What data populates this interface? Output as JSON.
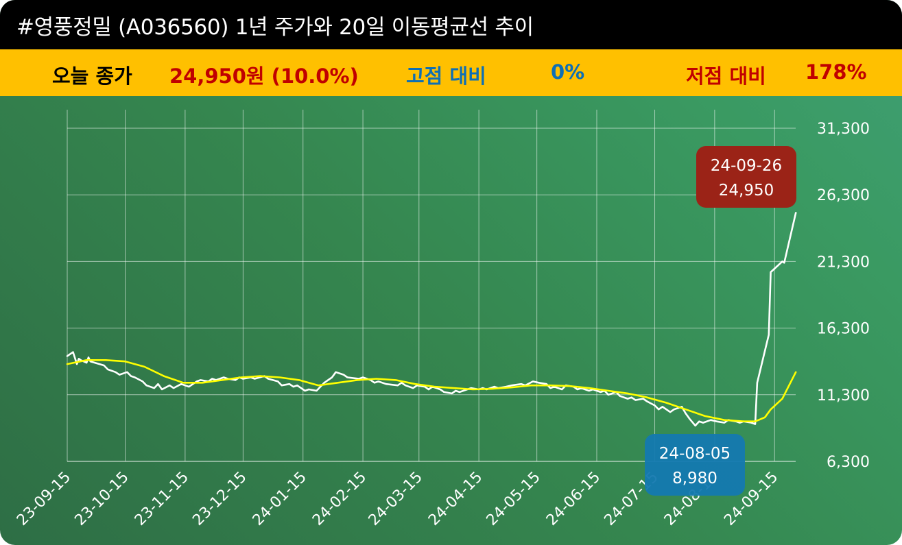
{
  "header": {
    "title": "#영풍정밀 (A036560) 1년 주가와 20일 이동평균선 추이"
  },
  "info": {
    "close_label": "오늘 종가",
    "close_value": "24,950원 (10.0%)",
    "high_label": "고점 대비",
    "high_value": "0%",
    "low_label": "저점 대비",
    "low_value": "178%"
  },
  "colors": {
    "title_bg": "#000000",
    "info_bg": "#ffc000",
    "close_label": "#000000",
    "close_value": "#c00000",
    "high": "#0e6fb5",
    "low": "#c00000",
    "price_line": "#ffffff",
    "ma_line": "#ffff00",
    "callout_high_bg": "#9b2317",
    "callout_low_bg": "#1479b0"
  },
  "chart_data": {
    "type": "line",
    "y_ticks": [
      "31,300",
      "26,300",
      "21,300",
      "16,300",
      "11,300",
      "6,300"
    ],
    "ylim": [
      6300,
      31300
    ],
    "x_ticks": [
      "23-09-15",
      "23-10-15",
      "23-11-15",
      "23-12-15",
      "24-01-15",
      "24-02-15",
      "24-03-15",
      "24-04-15",
      "24-05-15",
      "24-06-15",
      "24-07-15",
      "24-08-15",
      "24-09-15"
    ],
    "x_range": [
      "2023-09-15",
      "2024-09-26"
    ],
    "grid": true,
    "series": [
      {
        "key": "price",
        "style": "white",
        "points": [
          [
            "2023-09-15",
            14200
          ],
          [
            "2023-09-18",
            14500
          ],
          [
            "2023-09-20",
            13600
          ],
          [
            "2023-09-21",
            14000
          ],
          [
            "2023-09-22",
            13900
          ],
          [
            "2023-09-25",
            13700
          ],
          [
            "2023-09-26",
            14100
          ],
          [
            "2023-09-27",
            13800
          ],
          [
            "2023-10-04",
            13500
          ],
          [
            "2023-10-06",
            13200
          ],
          [
            "2023-10-10",
            13000
          ],
          [
            "2023-10-12",
            12800
          ],
          [
            "2023-10-16",
            13000
          ],
          [
            "2023-10-18",
            12700
          ],
          [
            "2023-10-20",
            12600
          ],
          [
            "2023-10-24",
            12300
          ],
          [
            "2023-10-26",
            12000
          ],
          [
            "2023-10-30",
            11800
          ],
          [
            "2023-11-01",
            12100
          ],
          [
            "2023-11-03",
            11700
          ],
          [
            "2023-11-07",
            12000
          ],
          [
            "2023-11-09",
            11800
          ],
          [
            "2023-11-13",
            12100
          ],
          [
            "2023-11-15",
            12000
          ],
          [
            "2023-11-17",
            11900
          ],
          [
            "2023-11-21",
            12300
          ],
          [
            "2023-11-23",
            12400
          ],
          [
            "2023-11-27",
            12300
          ],
          [
            "2023-11-29",
            12500
          ],
          [
            "2023-12-01",
            12400
          ],
          [
            "2023-12-05",
            12600
          ],
          [
            "2023-12-07",
            12500
          ],
          [
            "2023-12-11",
            12400
          ],
          [
            "2023-12-13",
            12600
          ],
          [
            "2023-12-15",
            12500
          ],
          [
            "2023-12-19",
            12600
          ],
          [
            "2023-12-21",
            12500
          ],
          [
            "2023-12-26",
            12700
          ],
          [
            "2023-12-28",
            12500
          ],
          [
            "2024-01-02",
            12300
          ],
          [
            "2024-01-04",
            12000
          ],
          [
            "2024-01-08",
            12100
          ],
          [
            "2024-01-10",
            11900
          ],
          [
            "2024-01-12",
            12000
          ],
          [
            "2024-01-16",
            11600
          ],
          [
            "2024-01-18",
            11700
          ],
          [
            "2024-01-22",
            11600
          ],
          [
            "2024-01-24",
            11900
          ],
          [
            "2024-01-26",
            12200
          ],
          [
            "2024-01-30",
            12600
          ],
          [
            "2024-02-01",
            13000
          ],
          [
            "2024-02-05",
            12800
          ],
          [
            "2024-02-07",
            12600
          ],
          [
            "2024-02-13",
            12500
          ],
          [
            "2024-02-15",
            12600
          ],
          [
            "2024-02-19",
            12400
          ],
          [
            "2024-02-21",
            12200
          ],
          [
            "2024-02-23",
            12300
          ],
          [
            "2024-02-27",
            12100
          ],
          [
            "2024-03-04",
            12000
          ],
          [
            "2024-03-06",
            12200
          ],
          [
            "2024-03-08",
            12000
          ],
          [
            "2024-03-12",
            11800
          ],
          [
            "2024-03-14",
            12000
          ],
          [
            "2024-03-18",
            11900
          ],
          [
            "2024-03-20",
            11700
          ],
          [
            "2024-03-22",
            11900
          ],
          [
            "2024-03-26",
            11700
          ],
          [
            "2024-03-28",
            11500
          ],
          [
            "2024-04-01",
            11400
          ],
          [
            "2024-04-03",
            11600
          ],
          [
            "2024-04-05",
            11500
          ],
          [
            "2024-04-09",
            11700
          ],
          [
            "2024-04-11",
            11800
          ],
          [
            "2024-04-15",
            11700
          ],
          [
            "2024-04-17",
            11800
          ],
          [
            "2024-04-19",
            11700
          ],
          [
            "2024-04-23",
            11900
          ],
          [
            "2024-04-25",
            11800
          ],
          [
            "2024-04-29",
            11900
          ],
          [
            "2024-05-02",
            12000
          ],
          [
            "2024-05-07",
            12100
          ],
          [
            "2024-05-09",
            12000
          ],
          [
            "2024-05-13",
            12300
          ],
          [
            "2024-05-16",
            12200
          ],
          [
            "2024-05-20",
            12100
          ],
          [
            "2024-05-22",
            11800
          ],
          [
            "2024-05-24",
            11900
          ],
          [
            "2024-05-28",
            11700
          ],
          [
            "2024-05-30",
            12000
          ],
          [
            "2024-06-03",
            11900
          ],
          [
            "2024-06-05",
            11700
          ],
          [
            "2024-06-07",
            11800
          ],
          [
            "2024-06-11",
            11600
          ],
          [
            "2024-06-13",
            11700
          ],
          [
            "2024-06-17",
            11500
          ],
          [
            "2024-06-19",
            11600
          ],
          [
            "2024-06-21",
            11300
          ],
          [
            "2024-06-25",
            11500
          ],
          [
            "2024-06-27",
            11200
          ],
          [
            "2024-07-01",
            11000
          ],
          [
            "2024-07-03",
            11100
          ],
          [
            "2024-07-05",
            10900
          ],
          [
            "2024-07-09",
            11000
          ],
          [
            "2024-07-11",
            10800
          ],
          [
            "2024-07-15",
            10500
          ],
          [
            "2024-07-17",
            10200
          ],
          [
            "2024-07-19",
            10400
          ],
          [
            "2024-07-23",
            10000
          ],
          [
            "2024-07-25",
            10200
          ],
          [
            "2024-07-29",
            10400
          ],
          [
            "2024-07-31",
            9900
          ],
          [
            "2024-08-02",
            9500
          ],
          [
            "2024-08-05",
            8980
          ],
          [
            "2024-08-07",
            9300
          ],
          [
            "2024-08-09",
            9200
          ],
          [
            "2024-08-13",
            9400
          ],
          [
            "2024-08-16",
            9300
          ],
          [
            "2024-08-20",
            9200
          ],
          [
            "2024-08-22",
            9400
          ],
          [
            "2024-08-26",
            9300
          ],
          [
            "2024-08-28",
            9200
          ],
          [
            "2024-08-30",
            9300
          ],
          [
            "2024-09-03",
            9200
          ],
          [
            "2024-09-05",
            9100
          ],
          [
            "2024-09-06",
            12200
          ],
          [
            "2024-09-12",
            15800
          ],
          [
            "2024-09-13",
            20500
          ],
          [
            "2024-09-19",
            21300
          ],
          [
            "2024-09-20",
            21200
          ],
          [
            "2024-09-26",
            24950
          ]
        ]
      },
      {
        "key": "ma20",
        "style": "yellow",
        "points": [
          [
            "2023-09-15",
            13600
          ],
          [
            "2023-09-25",
            13900
          ],
          [
            "2023-10-05",
            13900
          ],
          [
            "2023-10-15",
            13800
          ],
          [
            "2023-10-25",
            13400
          ],
          [
            "2023-11-04",
            12700
          ],
          [
            "2023-11-14",
            12200
          ],
          [
            "2023-11-24",
            12200
          ],
          [
            "2023-12-04",
            12400
          ],
          [
            "2023-12-14",
            12600
          ],
          [
            "2023-12-24",
            12700
          ],
          [
            "2024-01-03",
            12600
          ],
          [
            "2024-01-13",
            12400
          ],
          [
            "2024-01-23",
            12000
          ],
          [
            "2024-02-02",
            12200
          ],
          [
            "2024-02-12",
            12400
          ],
          [
            "2024-02-22",
            12500
          ],
          [
            "2024-03-03",
            12400
          ],
          [
            "2024-03-13",
            12100
          ],
          [
            "2024-03-23",
            11900
          ],
          [
            "2024-04-02",
            11800
          ],
          [
            "2024-04-12",
            11700
          ],
          [
            "2024-04-22",
            11750
          ],
          [
            "2024-05-02",
            11850
          ],
          [
            "2024-05-12",
            12000
          ],
          [
            "2024-05-22",
            12000
          ],
          [
            "2024-06-01",
            11950
          ],
          [
            "2024-06-11",
            11800
          ],
          [
            "2024-06-21",
            11600
          ],
          [
            "2024-07-01",
            11400
          ],
          [
            "2024-07-11",
            11100
          ],
          [
            "2024-07-21",
            10700
          ],
          [
            "2024-07-31",
            10200
          ],
          [
            "2024-08-10",
            9700
          ],
          [
            "2024-08-20",
            9400
          ],
          [
            "2024-08-30",
            9300
          ],
          [
            "2024-09-05",
            9300
          ],
          [
            "2024-09-10",
            9600
          ],
          [
            "2024-09-13",
            10200
          ],
          [
            "2024-09-19",
            11000
          ],
          [
            "2024-09-26",
            13000
          ]
        ]
      }
    ],
    "annotations": [
      {
        "kind": "high",
        "date_text": "24-09-26",
        "value_text": "24,950"
      },
      {
        "kind": "low",
        "date_text": "24-08-05",
        "value_text": "8,980"
      }
    ]
  }
}
